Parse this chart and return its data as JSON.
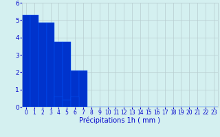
{
  "categories": [
    0,
    1,
    2,
    3,
    4,
    5,
    6,
    7,
    8,
    9,
    10,
    11,
    12,
    13,
    14,
    15,
    16,
    17,
    18,
    19,
    20,
    21,
    22,
    23
  ],
  "values": [
    5.3,
    5.3,
    4.85,
    4.85,
    3.75,
    3.75,
    2.1,
    2.1,
    0.0,
    0.0,
    0.0,
    0.0,
    0.0,
    0.0,
    0.0,
    0.0,
    0.0,
    0.0,
    0.0,
    0.0,
    0.0,
    0.0,
    0.0,
    0.0
  ],
  "small_bar_cats": [
    4,
    5,
    6
  ],
  "small_bar_vals": [
    0.6,
    0.4,
    0.6
  ],
  "bar_color": "#0033cc",
  "bar_edge_color": "#0055ff",
  "background_color": "#d4f0f0",
  "grid_color": "#b8cdd0",
  "xlabel": "Précipitations 1h ( mm )",
  "ylim": [
    0,
    6
  ],
  "yticks": [
    0,
    1,
    2,
    3,
    4,
    5,
    6
  ],
  "xlim": [
    -0.5,
    23.5
  ],
  "tick_color": "#0000cc",
  "xlabel_fontsize": 7.0,
  "tick_fontsize": 5.5
}
